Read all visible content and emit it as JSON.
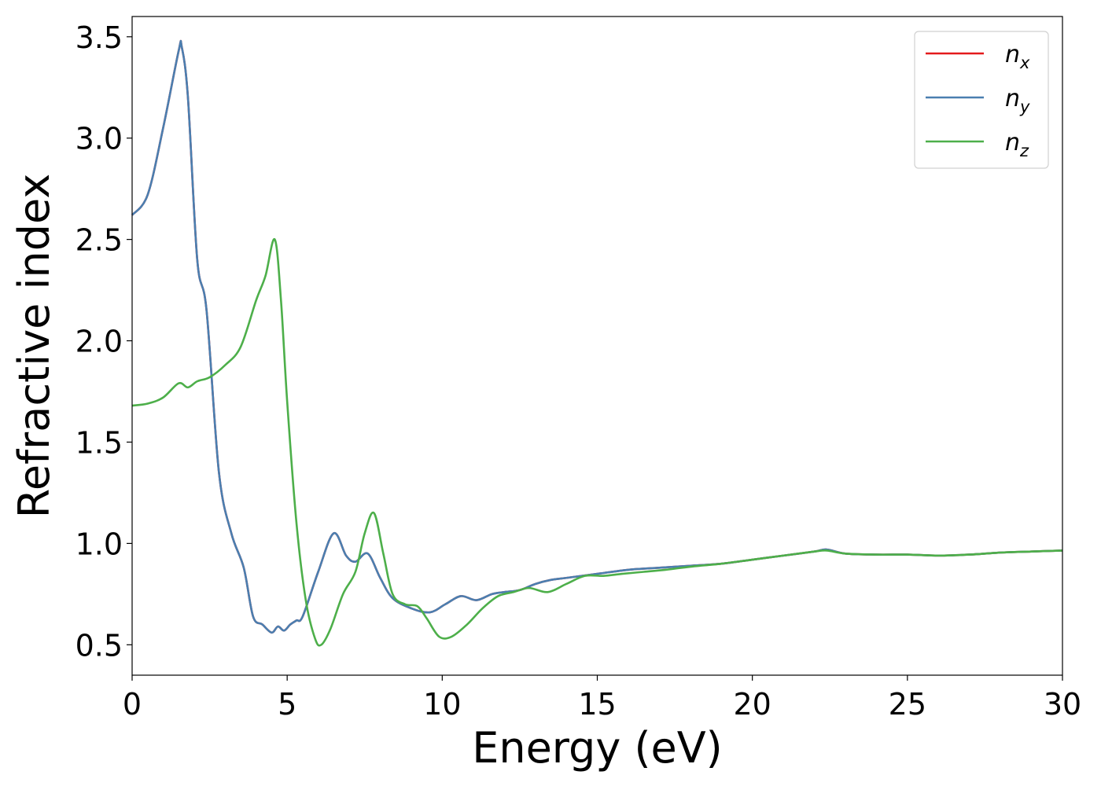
{
  "chart_data": {
    "type": "line",
    "xlabel": "Energy (eV)",
    "ylabel": "Refractive index",
    "xlim": [
      0,
      30
    ],
    "ylim": [
      0.35,
      3.6
    ],
    "xticks": [
      "0",
      "5",
      "10",
      "15",
      "20",
      "25",
      "30"
    ],
    "yticks": [
      "0.5",
      "1.0",
      "1.5",
      "2.0",
      "2.5",
      "3.0",
      "3.5"
    ],
    "grid": false,
    "legend_position": "top-right",
    "series": [
      {
        "name": "n_x",
        "label_base": "n",
        "label_sub": "x",
        "color": "#e41a1c",
        "x": [
          0,
          0.5,
          1.0,
          1.5,
          1.6,
          1.8,
          2.1,
          2.4,
          2.8,
          3.2,
          3.6,
          3.9,
          4.2,
          4.5,
          4.7,
          4.9,
          5.1,
          5.3,
          5.5,
          6.0,
          6.5,
          6.9,
          7.2,
          7.6,
          8.0,
          8.4,
          9.0,
          9.6,
          10.1,
          10.6,
          11.1,
          11.6,
          12.0,
          12.5,
          13.0,
          13.5,
          14.0,
          15.0,
          16.0,
          17.0,
          18.0,
          19.0,
          20.0,
          21.0,
          22.0,
          22.4,
          23.0,
          24.0,
          25.0,
          26.0,
          27.0,
          28.0,
          29.0,
          30.0
        ],
        "y": [
          2.62,
          2.72,
          3.05,
          3.43,
          3.45,
          3.2,
          2.4,
          2.15,
          1.35,
          1.05,
          0.88,
          0.64,
          0.6,
          0.56,
          0.59,
          0.57,
          0.6,
          0.62,
          0.64,
          0.86,
          1.05,
          0.94,
          0.91,
          0.95,
          0.83,
          0.73,
          0.68,
          0.66,
          0.7,
          0.74,
          0.72,
          0.75,
          0.76,
          0.77,
          0.8,
          0.82,
          0.83,
          0.85,
          0.87,
          0.88,
          0.89,
          0.9,
          0.92,
          0.94,
          0.96,
          0.97,
          0.95,
          0.945,
          0.945,
          0.94,
          0.945,
          0.955,
          0.96,
          0.965
        ]
      },
      {
        "name": "n_y",
        "label_base": "n",
        "label_sub": "y",
        "color": "#4a7fb0",
        "x": [
          0,
          0.5,
          1.0,
          1.5,
          1.6,
          1.8,
          2.1,
          2.4,
          2.8,
          3.2,
          3.6,
          3.9,
          4.2,
          4.5,
          4.7,
          4.9,
          5.1,
          5.3,
          5.5,
          6.0,
          6.5,
          6.9,
          7.2,
          7.6,
          8.0,
          8.4,
          9.0,
          9.6,
          10.1,
          10.6,
          11.1,
          11.6,
          12.0,
          12.5,
          13.0,
          13.5,
          14.0,
          15.0,
          16.0,
          17.0,
          18.0,
          19.0,
          20.0,
          21.0,
          22.0,
          22.4,
          23.0,
          24.0,
          25.0,
          26.0,
          27.0,
          28.0,
          29.0,
          30.0
        ],
        "y": [
          2.62,
          2.72,
          3.05,
          3.43,
          3.45,
          3.2,
          2.4,
          2.15,
          1.35,
          1.05,
          0.88,
          0.64,
          0.6,
          0.56,
          0.59,
          0.57,
          0.6,
          0.62,
          0.64,
          0.86,
          1.05,
          0.94,
          0.91,
          0.95,
          0.83,
          0.73,
          0.68,
          0.66,
          0.7,
          0.74,
          0.72,
          0.75,
          0.76,
          0.77,
          0.8,
          0.82,
          0.83,
          0.85,
          0.87,
          0.88,
          0.89,
          0.9,
          0.92,
          0.94,
          0.96,
          0.97,
          0.95,
          0.945,
          0.945,
          0.94,
          0.945,
          0.955,
          0.96,
          0.965
        ]
      },
      {
        "name": "n_z",
        "label_base": "n",
        "label_sub": "z",
        "color": "#4daf4a",
        "x": [
          0,
          0.5,
          1.0,
          1.5,
          1.8,
          2.1,
          2.5,
          3.0,
          3.5,
          4.0,
          4.3,
          4.6,
          4.8,
          5.0,
          5.3,
          5.6,
          5.9,
          6.1,
          6.4,
          6.8,
          7.2,
          7.5,
          7.8,
          8.1,
          8.4,
          8.8,
          9.2,
          9.5,
          9.9,
          10.3,
          10.8,
          11.3,
          11.8,
          12.3,
          12.8,
          13.4,
          14.0,
          14.6,
          15.2,
          15.8,
          16.5,
          17.2,
          18.0,
          19.0,
          20.0,
          21.0,
          22.0,
          22.4,
          23.0,
          24.0,
          25.0,
          26.0,
          27.0,
          28.0,
          29.0,
          30.0
        ],
        "y": [
          1.68,
          1.69,
          1.72,
          1.79,
          1.77,
          1.8,
          1.82,
          1.88,
          1.97,
          2.2,
          2.32,
          2.5,
          2.2,
          1.7,
          1.1,
          0.72,
          0.53,
          0.5,
          0.58,
          0.75,
          0.86,
          1.05,
          1.15,
          0.95,
          0.75,
          0.7,
          0.69,
          0.63,
          0.54,
          0.54,
          0.6,
          0.68,
          0.74,
          0.76,
          0.78,
          0.76,
          0.8,
          0.84,
          0.84,
          0.85,
          0.86,
          0.87,
          0.885,
          0.9,
          0.92,
          0.94,
          0.96,
          0.965,
          0.95,
          0.945,
          0.945,
          0.94,
          0.945,
          0.955,
          0.96,
          0.965
        ]
      }
    ]
  }
}
